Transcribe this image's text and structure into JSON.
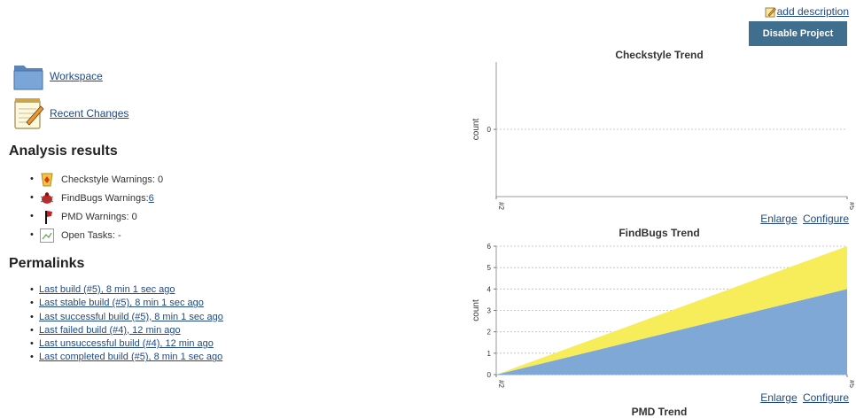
{
  "header": {
    "add_description": "add description",
    "disable_button": "Disable Project"
  },
  "tasks": [
    {
      "label": "Workspace",
      "icon": "folder-icon"
    },
    {
      "label": "Recent Changes",
      "icon": "notepad-icon"
    }
  ],
  "analysis": {
    "heading": "Analysis results",
    "items": [
      {
        "icon": "checkstyle-icon",
        "prefix": "Checkstyle Warnings: 0",
        "link": ""
      },
      {
        "icon": "findbugs-icon",
        "prefix": "FindBugs Warnings: ",
        "link": "6"
      },
      {
        "icon": "pmd-icon",
        "prefix": "PMD Warnings: 0",
        "link": ""
      },
      {
        "icon": "broken-image-icon",
        "prefix": "Open Tasks: -",
        "link": ""
      }
    ]
  },
  "permalinks": {
    "heading": "Permalinks",
    "items": [
      "Last build (#5), 8 min 1 sec ago",
      "Last stable build (#5), 8 min 1 sec ago",
      "Last successful build (#5), 8 min 1 sec ago",
      "Last failed build (#4), 12 min ago",
      "Last unsuccessful build (#4), 12 min ago",
      "Last completed build (#5), 8 min 1 sec ago"
    ]
  },
  "chart_links": {
    "enlarge": "Enlarge",
    "configure": "Configure"
  },
  "chart_data": [
    {
      "type": "line",
      "title": "Checkstyle Trend",
      "ylabel": "count",
      "x": [
        "#2",
        "#5"
      ],
      "yticks": [
        0
      ],
      "series": [
        {
          "values": [
            0,
            0
          ]
        }
      ],
      "colors": [
        "#999999"
      ]
    },
    {
      "type": "area",
      "title": "FindBugs Trend",
      "ylabel": "count",
      "x": [
        "#2",
        "#5"
      ],
      "ylim": [
        0,
        6
      ],
      "yticks": [
        0,
        1,
        2,
        3,
        4,
        5,
        6
      ],
      "series": [
        {
          "values": [
            0,
            4
          ]
        },
        {
          "values": [
            0,
            2
          ]
        }
      ],
      "colors": [
        "#7fa8d6",
        "#f7ec5a"
      ]
    },
    {
      "type": "area",
      "title": "PMD Trend"
    }
  ]
}
